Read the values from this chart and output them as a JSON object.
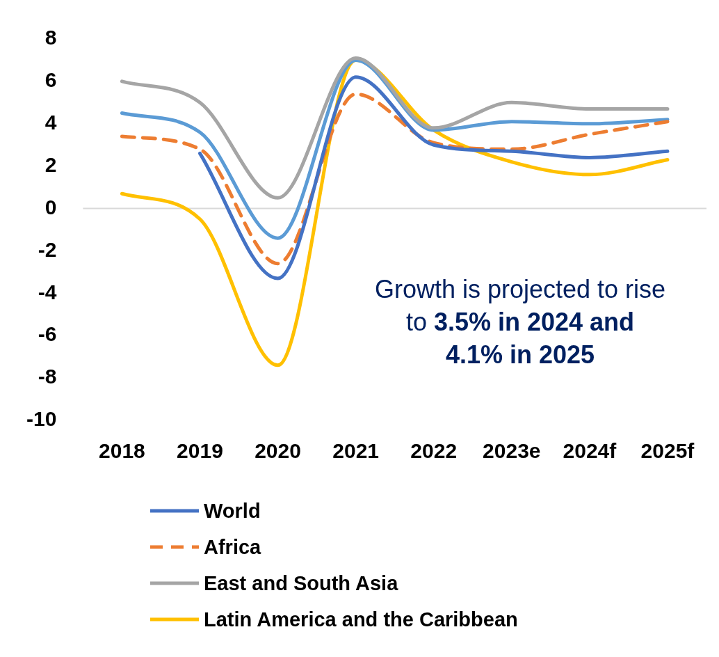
{
  "chart_data": {
    "type": "line",
    "categories": [
      "2018",
      "2019",
      "2020",
      "2021",
      "2022",
      "2023e",
      "2024f",
      "2025f"
    ],
    "series": [
      {
        "name": "World",
        "color": "#4472c4",
        "values": [
          null,
          2.6,
          -3.3,
          6.2,
          3.0,
          2.7,
          2.4,
          2.7
        ]
      },
      {
        "name": "Africa",
        "color": "#ed7d31",
        "line_style": "dashed",
        "values": [
          3.4,
          2.8,
          -2.6,
          5.4,
          3.1,
          2.8,
          3.5,
          4.1
        ]
      },
      {
        "name": "East and South Asia",
        "color": "#a5a5a5",
        "values": [
          6.0,
          5.0,
          0.5,
          7.1,
          3.8,
          5.0,
          4.7,
          4.7
        ]
      },
      {
        "color": "#5b9bd5",
        "values": [
          4.5,
          3.6,
          -1.4,
          7.0,
          3.7,
          4.1,
          4.0,
          4.2
        ]
      },
      {
        "name": "Latin America and the Caribbean",
        "color": "#ffc000",
        "values": [
          0.7,
          -0.5,
          -7.4,
          7.0,
          3.7,
          2.2,
          1.6,
          2.3
        ]
      }
    ],
    "ylim": [
      -10,
      8
    ],
    "yticks": [
      -10,
      -8,
      -6,
      -4,
      -2,
      0,
      2,
      4,
      6,
      8
    ],
    "grid": false,
    "ref_lines": [
      {
        "axis": "y",
        "value": 0,
        "color": "#d9d9d9"
      }
    ],
    "legend": "bottom",
    "marker": "none",
    "line_style": "solid",
    "annotations": [
      "Growth is projected to rise to",
      "3.5% in 2024 and 4.1% in 2025"
    ]
  }
}
